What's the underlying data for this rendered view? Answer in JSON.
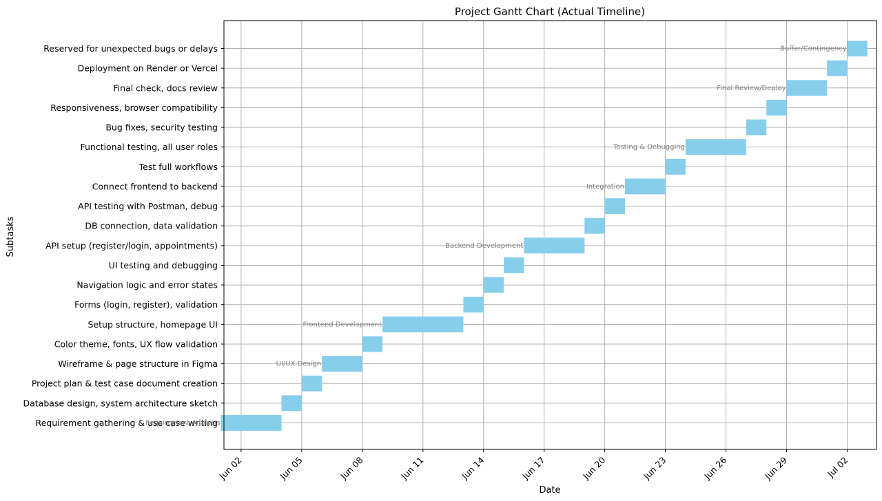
{
  "chart_data": {
    "type": "gantt",
    "title": "Project Gantt Chart (Actual Timeline)",
    "xlabel": "Date",
    "ylabel": "Subtasks",
    "x_range": [
      "2025-06-01",
      "2025-07-04"
    ],
    "x_ticks": [
      "Jun 02",
      "Jun 05",
      "Jun 08",
      "Jun 11",
      "Jun 14",
      "Jun 17",
      "Jun 20",
      "Jun 23",
      "Jun 26",
      "Jun 29",
      "Jul 02"
    ],
    "x_tick_dates": [
      "2025-06-02",
      "2025-06-05",
      "2025-06-08",
      "2025-06-11",
      "2025-06-14",
      "2025-06-17",
      "2025-06-20",
      "2025-06-23",
      "2025-06-26",
      "2025-06-29",
      "2025-07-02"
    ],
    "grid": true,
    "bar_color": "#87ceeb",
    "annotation_color": "#808080",
    "tasks": [
      {
        "label": "Requirement gathering & use case writing",
        "start": "2025-06-01",
        "end": "2025-06-04",
        "phase": "Requirement Analysis"
      },
      {
        "label": "Database design, system architecture sketch",
        "start": "2025-06-04",
        "end": "2025-06-05",
        "phase": ""
      },
      {
        "label": "Project plan & test case document creation",
        "start": "2025-06-05",
        "end": "2025-06-06",
        "phase": ""
      },
      {
        "label": "Wireframe & page structure in Figma",
        "start": "2025-06-06",
        "end": "2025-06-08",
        "phase": "UI/UX Design"
      },
      {
        "label": "Color theme, fonts, UX flow validation",
        "start": "2025-06-08",
        "end": "2025-06-09",
        "phase": ""
      },
      {
        "label": "Setup structure, homepage UI",
        "start": "2025-06-09",
        "end": "2025-06-13",
        "phase": "Frontend Development"
      },
      {
        "label": "Forms (login, register), validation",
        "start": "2025-06-13",
        "end": "2025-06-14",
        "phase": ""
      },
      {
        "label": "Navigation logic and error states",
        "start": "2025-06-14",
        "end": "2025-06-15",
        "phase": ""
      },
      {
        "label": "UI testing and debugging",
        "start": "2025-06-15",
        "end": "2025-06-16",
        "phase": ""
      },
      {
        "label": "API setup (register/login, appointments)",
        "start": "2025-06-16",
        "end": "2025-06-19",
        "phase": "Backend Development"
      },
      {
        "label": "DB connection, data validation",
        "start": "2025-06-19",
        "end": "2025-06-20",
        "phase": ""
      },
      {
        "label": "API testing with Postman, debug",
        "start": "2025-06-20",
        "end": "2025-06-21",
        "phase": ""
      },
      {
        "label": "Connect frontend to backend",
        "start": "2025-06-21",
        "end": "2025-06-23",
        "phase": "Integration"
      },
      {
        "label": "Test full workflows",
        "start": "2025-06-23",
        "end": "2025-06-24",
        "phase": ""
      },
      {
        "label": "Functional testing, all user roles",
        "start": "2025-06-24",
        "end": "2025-06-27",
        "phase": "Testing & Debugging"
      },
      {
        "label": "Bug fixes, security testing",
        "start": "2025-06-27",
        "end": "2025-06-28",
        "phase": ""
      },
      {
        "label": "Responsiveness, browser compatibility",
        "start": "2025-06-28",
        "end": "2025-06-29",
        "phase": ""
      },
      {
        "label": "Final check, docs review",
        "start": "2025-06-29",
        "end": "2025-07-01",
        "phase": "Final Review/Deploy"
      },
      {
        "label": "Deployment on Render or Vercel",
        "start": "2025-07-01",
        "end": "2025-07-02",
        "phase": ""
      },
      {
        "label": "Reserved for unexpected bugs or delays",
        "start": "2025-07-02",
        "end": "2025-07-03",
        "phase": "Buffer/Contingency"
      }
    ]
  }
}
